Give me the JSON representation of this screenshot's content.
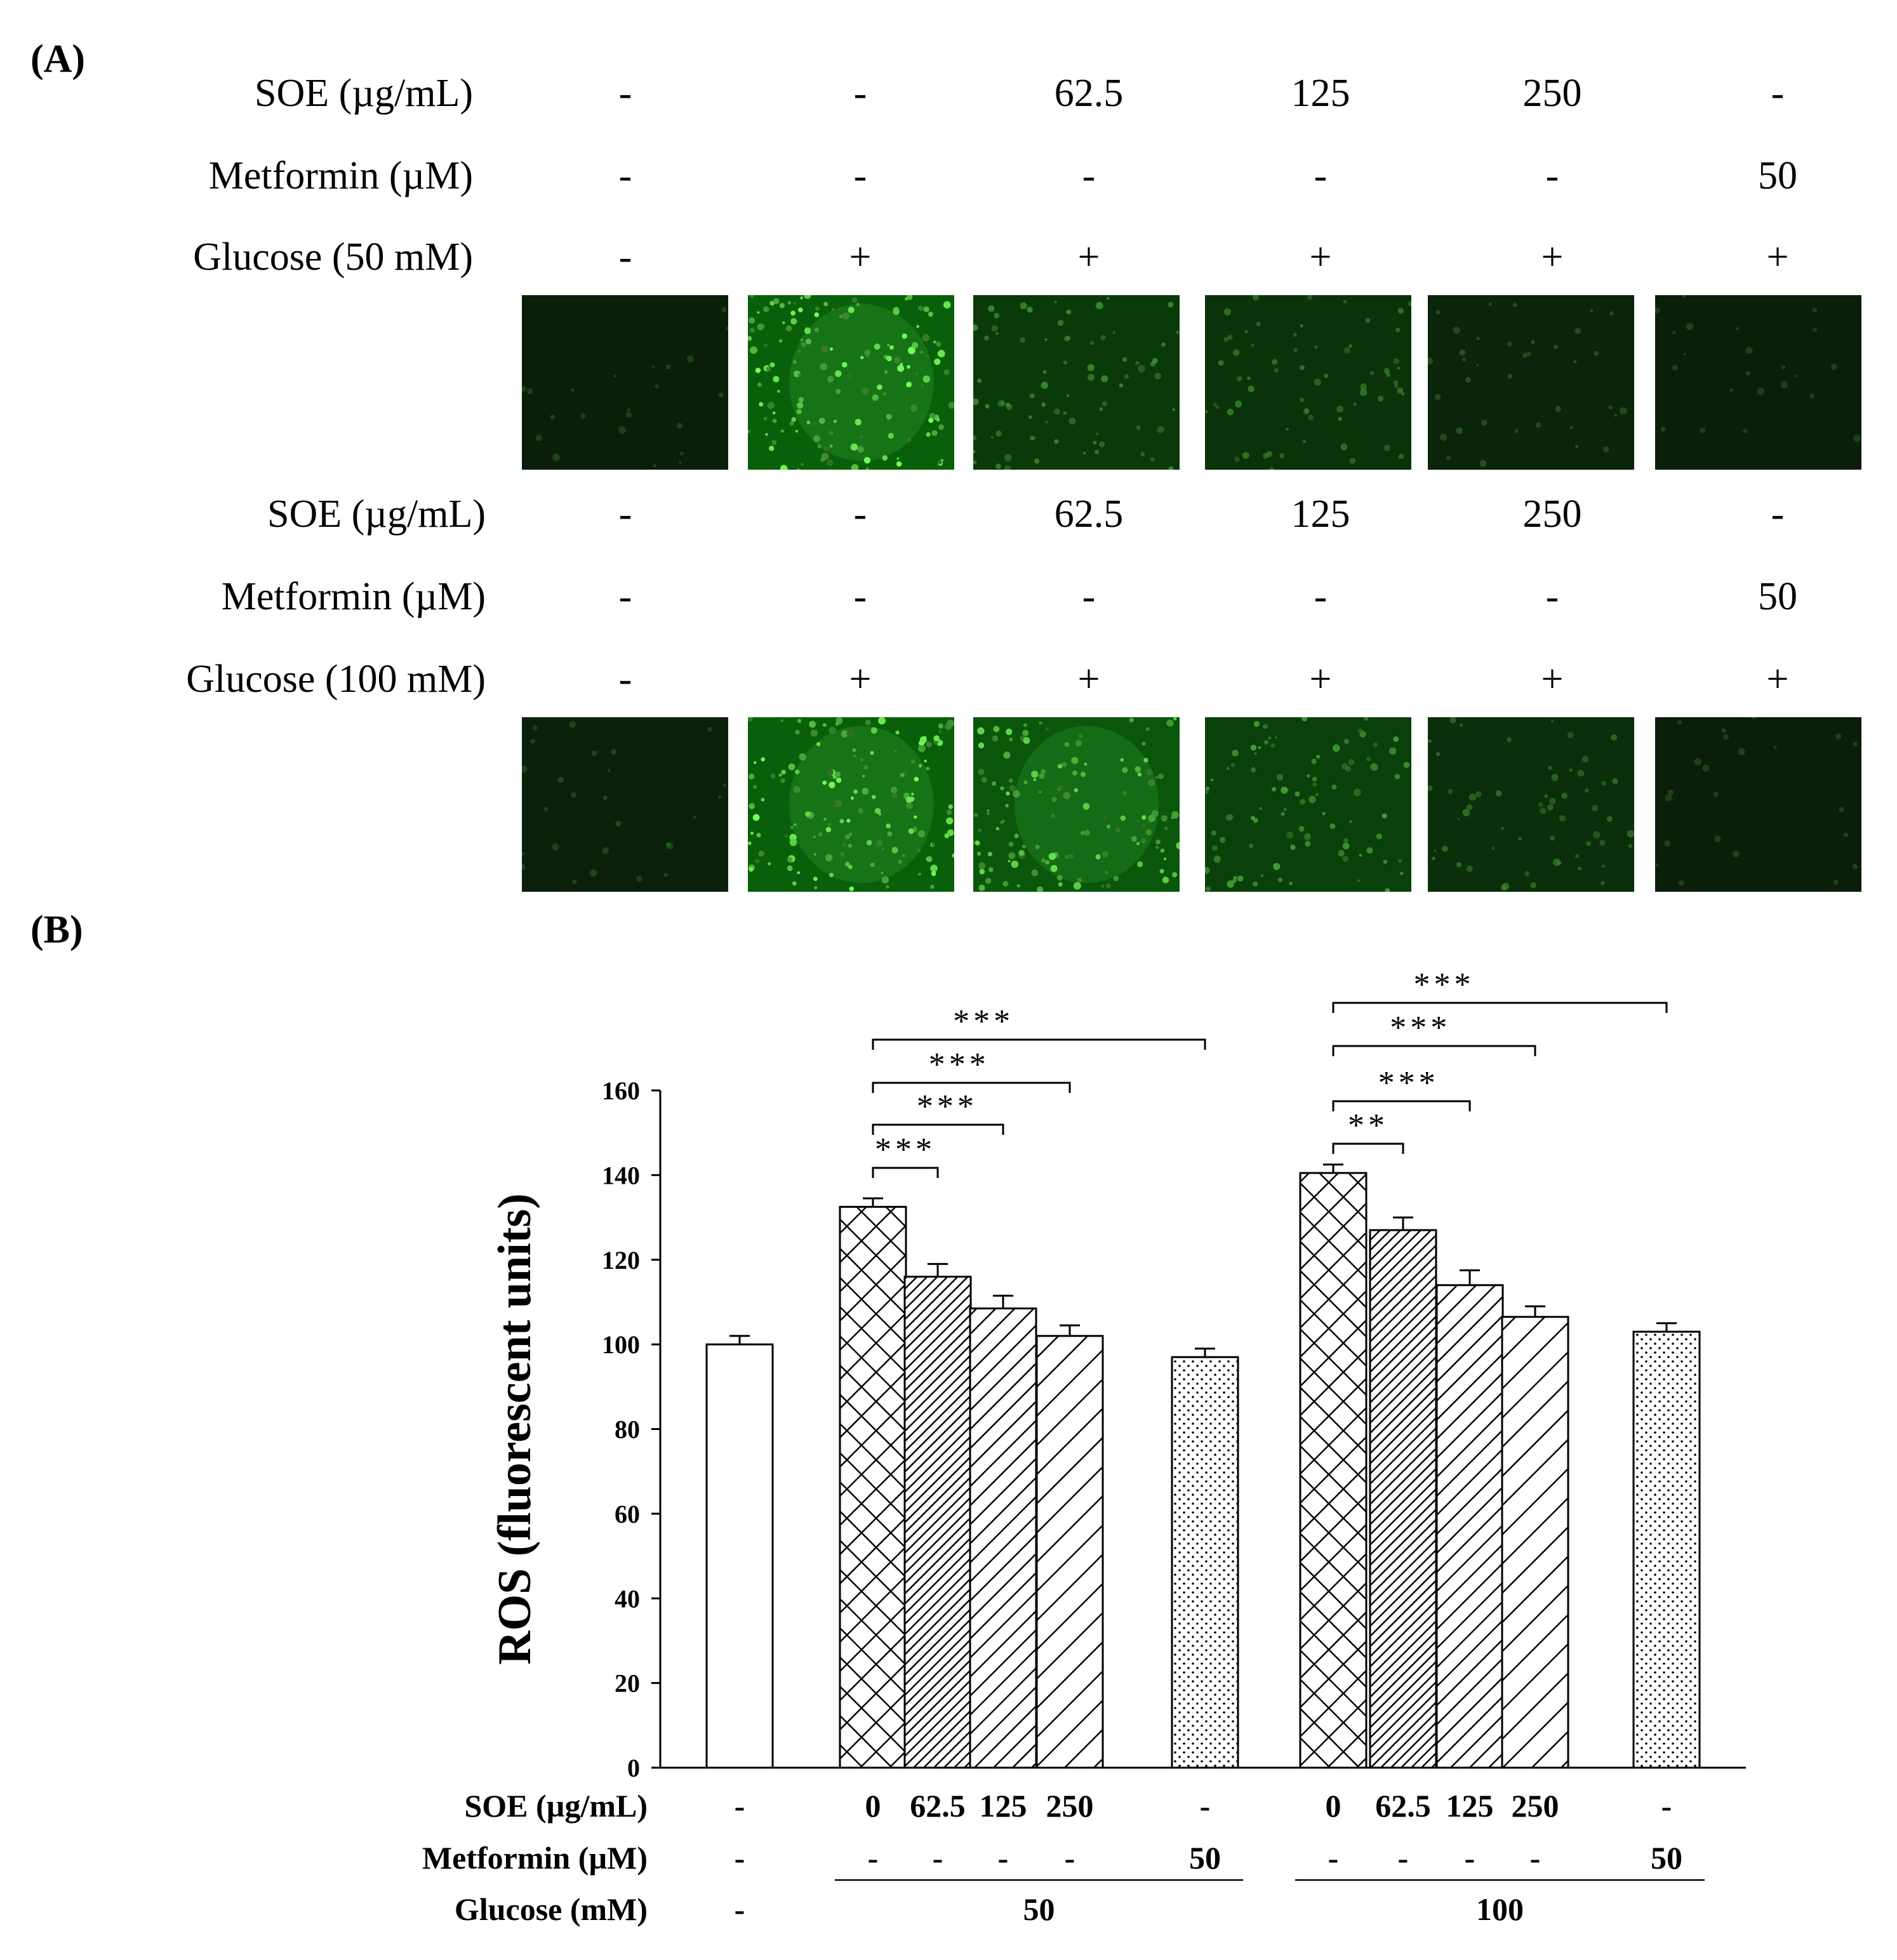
{
  "panelA": {
    "label": "(A)",
    "groups": [
      {
        "rows": [
          {
            "label": "SOE (µg/mL)",
            "values": [
              "-",
              "-",
              "62.5",
              "125",
              "250",
              "-"
            ]
          },
          {
            "label": "Metformin (µM)",
            "values": [
              "-",
              "-",
              "-",
              "-",
              "-",
              "50"
            ]
          },
          {
            "label": "Glucose (50 mM)",
            "values": [
              "-",
              "+",
              "+",
              "+",
              "+",
              "+"
            ]
          }
        ],
        "image_intensity": [
          0.05,
          1.0,
          0.45,
          0.35,
          0.15,
          0.05
        ]
      },
      {
        "rows": [
          {
            "label": "SOE (µg/mL)",
            "values": [
              "-",
              "-",
              "62.5",
              "125",
              "250",
              "-"
            ]
          },
          {
            "label": "Metformin (µM)",
            "values": [
              "-",
              "-",
              "-",
              "-",
              "-",
              "50"
            ]
          },
          {
            "label": "Glucose (100 mM)",
            "values": [
              "-",
              "+",
              "+",
              "+",
              "+",
              "+"
            ]
          }
        ],
        "image_intensity": [
          0.08,
          1.0,
          0.85,
          0.55,
          0.3,
          0.05
        ]
      }
    ]
  },
  "panelB": {
    "label": "(B)"
  },
  "chart_data": {
    "type": "bar",
    "ylabel": "ROS (fluorescent units)",
    "ylim": [
      0,
      160
    ],
    "yticks": [
      0,
      20,
      40,
      60,
      80,
      100,
      120,
      140,
      160
    ],
    "bars": [
      {
        "value": 100,
        "error": 2,
        "pattern": "none"
      },
      {
        "value": 132.5,
        "error": 2,
        "pattern": "crosshatch"
      },
      {
        "value": 116,
        "error": 3,
        "pattern": "dense-diagonal"
      },
      {
        "value": 108.5,
        "error": 3,
        "pattern": "diagonal"
      },
      {
        "value": 102,
        "error": 2.5,
        "pattern": "sparse-diagonal"
      },
      {
        "value": 97,
        "error": 2,
        "pattern": "dots"
      },
      {
        "value": 140.5,
        "error": 2,
        "pattern": "crosshatch"
      },
      {
        "value": 127,
        "error": 3,
        "pattern": "dense-diagonal"
      },
      {
        "value": 114,
        "error": 3.5,
        "pattern": "diagonal"
      },
      {
        "value": 106.5,
        "error": 2.5,
        "pattern": "sparse-diagonal"
      },
      {
        "value": 103,
        "error": 2,
        "pattern": "dots"
      }
    ],
    "significance": [
      {
        "from": 1,
        "to": 2,
        "label": "***"
      },
      {
        "from": 1,
        "to": 3,
        "label": "***"
      },
      {
        "from": 1,
        "to": 4,
        "label": "***"
      },
      {
        "from": 1,
        "to": 5,
        "label": "***"
      },
      {
        "from": 6,
        "to": 7,
        "label": "**"
      },
      {
        "from": 6,
        "to": 8,
        "label": "***"
      },
      {
        "from": 6,
        "to": 9,
        "label": "***"
      },
      {
        "from": 6,
        "to": 10,
        "label": "***"
      }
    ],
    "table": {
      "rows": [
        {
          "label": "SOE (µg/mL)",
          "values": [
            "-",
            "0",
            "62.5",
            "125",
            "250",
            "-",
            "0",
            "62.5",
            "125",
            "250",
            "-"
          ]
        },
        {
          "label": "Metformin (µM)",
          "values": [
            "-",
            "-",
            "-",
            "-",
            "-",
            "50",
            "-",
            "-",
            "-",
            "-",
            "50"
          ]
        }
      ],
      "glucose_label": "Glucose (mM)",
      "glucose_groups": [
        {
          "label": "-",
          "from": 0,
          "to": 0
        },
        {
          "label": "50",
          "from": 1,
          "to": 5
        },
        {
          "label": "100",
          "from": 6,
          "to": 10
        }
      ]
    }
  }
}
